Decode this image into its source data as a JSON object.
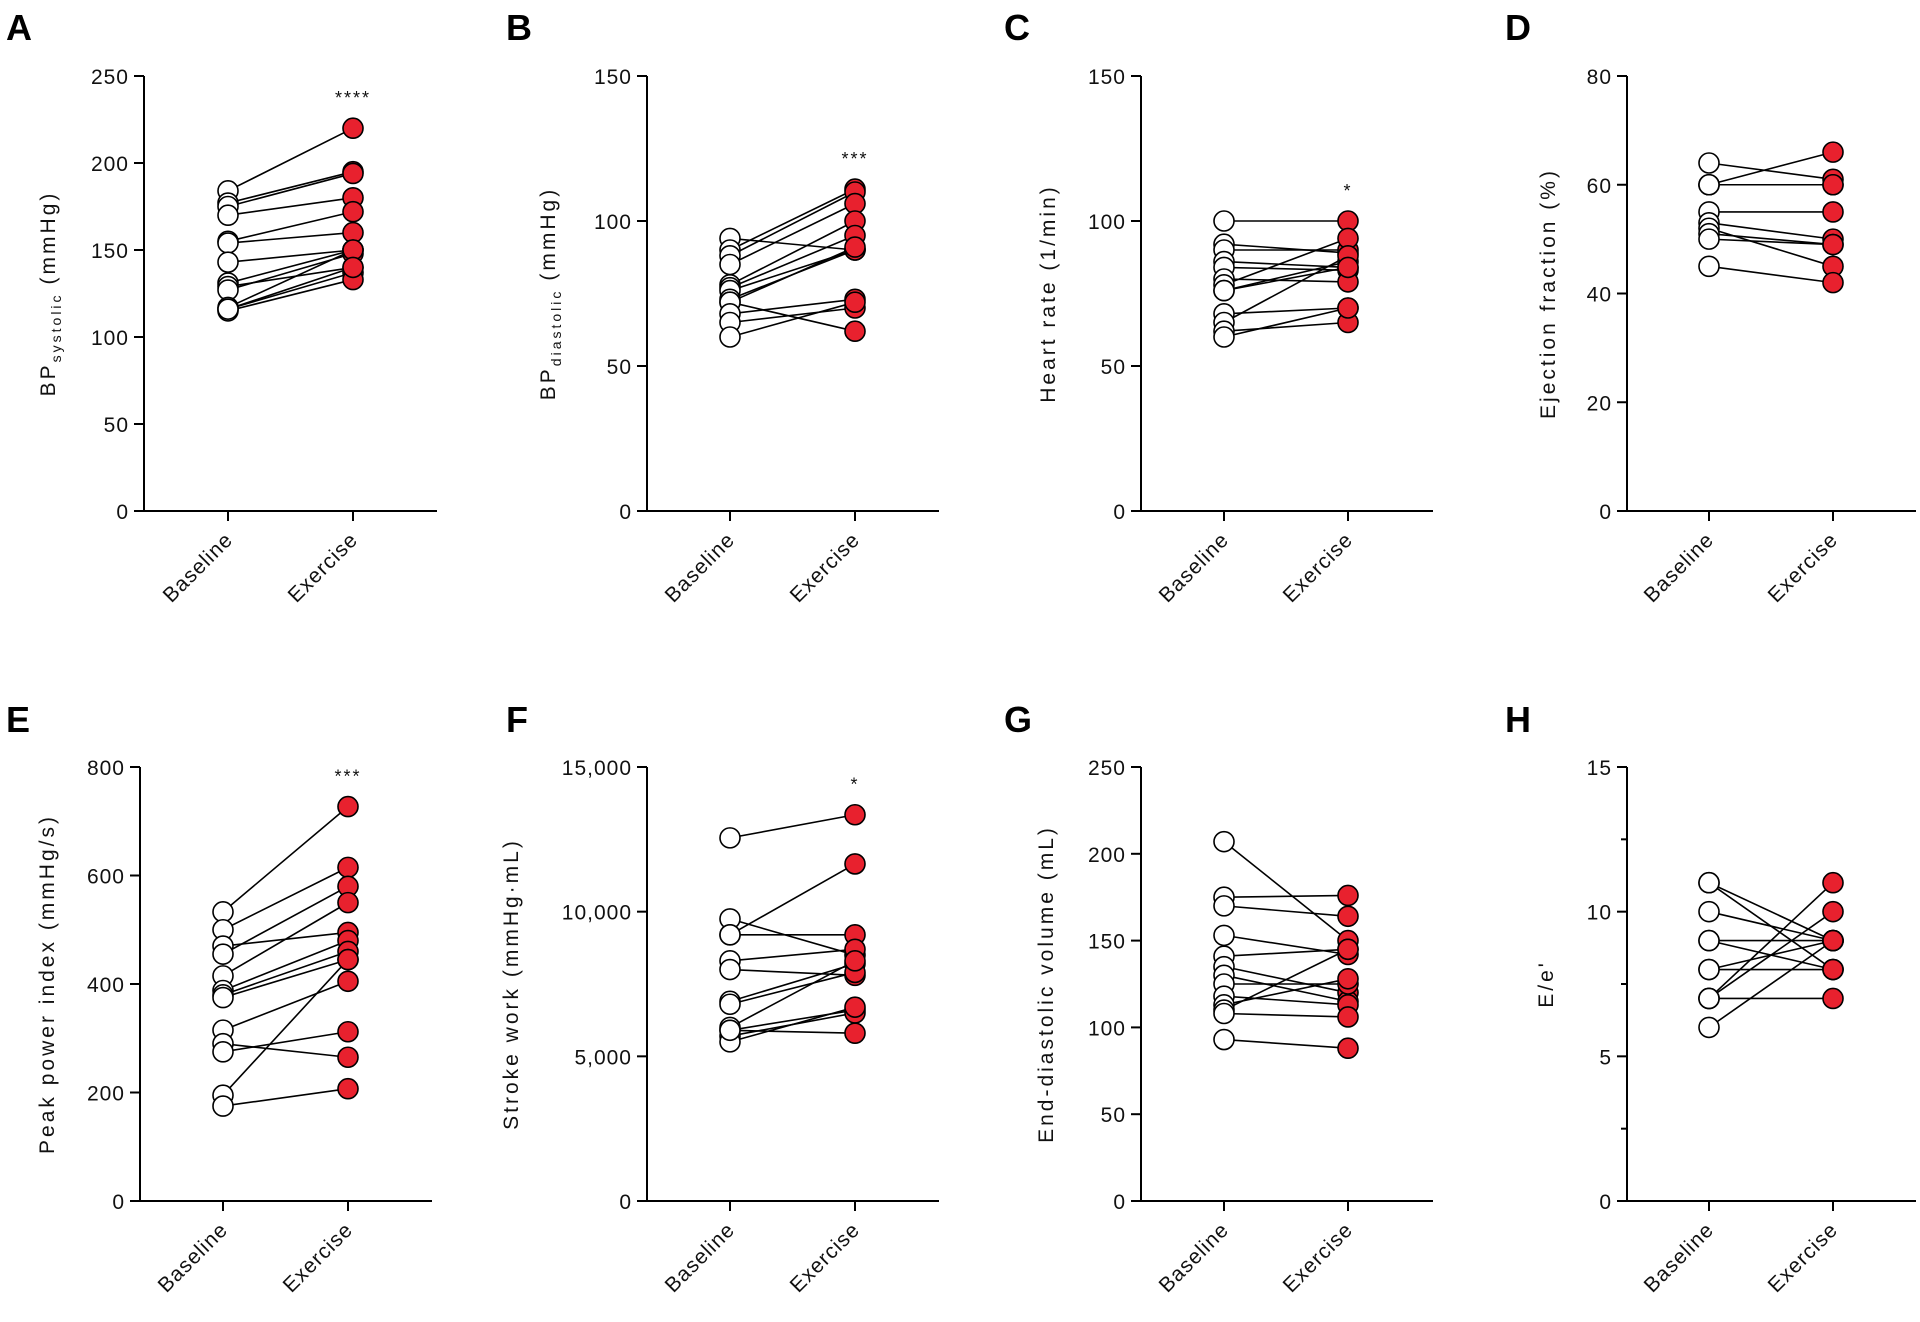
{
  "chart_data": [
    {
      "type": "line",
      "panel": "A",
      "ylabel": "BP",
      "ylabel_sub": "systolic",
      "ylabel_unit": "(mmHg)",
      "ylim": [
        0,
        250
      ],
      "yticks": [
        0,
        50,
        100,
        150,
        200,
        250
      ],
      "ytick_labels": [
        "0",
        "50",
        "100",
        "150",
        "200",
        "250"
      ],
      "minor_ticks": [],
      "categories": [
        "Baseline",
        "Exercise"
      ],
      "significance": "****",
      "pairs": [
        [
          184,
          220
        ],
        [
          177,
          195
        ],
        [
          175,
          194
        ],
        [
          170,
          180
        ],
        [
          155,
          172
        ],
        [
          154,
          160
        ],
        [
          143,
          150
        ],
        [
          131,
          150
        ],
        [
          129,
          140
        ],
        [
          127,
          148
        ],
        [
          117,
          150
        ],
        [
          116,
          137
        ],
        [
          115,
          133
        ],
        [
          116,
          140
        ]
      ]
    },
    {
      "type": "line",
      "panel": "B",
      "ylabel": "BP",
      "ylabel_sub": "diastolic",
      "ylabel_unit": "(mmHg)",
      "ylim": [
        0,
        150
      ],
      "yticks": [
        0,
        50,
        100,
        150
      ],
      "ytick_labels": [
        "0",
        "50",
        "100",
        "150"
      ],
      "minor_ticks": [],
      "categories": [
        "Baseline",
        "Exercise"
      ],
      "significance": "***",
      "pairs": [
        [
          94,
          90
        ],
        [
          90,
          111
        ],
        [
          88,
          110
        ],
        [
          85,
          106
        ],
        [
          78,
          100
        ],
        [
          77,
          95
        ],
        [
          76,
          90
        ],
        [
          73,
          90
        ],
        [
          72,
          91
        ],
        [
          72,
          62
        ],
        [
          68,
          73
        ],
        [
          65,
          70
        ],
        [
          60,
          72
        ]
      ]
    },
    {
      "type": "line",
      "panel": "C",
      "ylabel": "Heart rate (1/min)",
      "ylabel_sub": "",
      "ylabel_unit": "",
      "ylim": [
        0,
        150
      ],
      "yticks": [
        0,
        50,
        100,
        150
      ],
      "ytick_labels": [
        "0",
        "50",
        "100",
        "150"
      ],
      "minor_ticks": [],
      "categories": [
        "Baseline",
        "Exercise"
      ],
      "significance": "*",
      "pairs": [
        [
          100,
          100
        ],
        [
          92,
          89
        ],
        [
          90,
          90
        ],
        [
          86,
          84
        ],
        [
          84,
          83
        ],
        [
          80,
          79
        ],
        [
          78,
          94
        ],
        [
          76,
          86
        ],
        [
          68,
          70
        ],
        [
          65,
          88
        ],
        [
          62,
          65
        ],
        [
          60,
          70
        ],
        [
          76,
          84
        ]
      ]
    },
    {
      "type": "line",
      "panel": "D",
      "ylabel": "Ejection fraction (%)",
      "ylabel_sub": "",
      "ylabel_unit": "",
      "ylim": [
        0,
        80
      ],
      "yticks": [
        0,
        20,
        40,
        60,
        80
      ],
      "ytick_labels": [
        "0",
        "20",
        "40",
        "60",
        "80"
      ],
      "minor_ticks": [],
      "categories": [
        "Baseline",
        "Exercise"
      ],
      "significance": "",
      "pairs": [
        [
          64,
          61
        ],
        [
          60,
          66
        ],
        [
          60,
          60
        ],
        [
          55,
          55
        ],
        [
          53,
          50
        ],
        [
          52,
          45
        ],
        [
          51,
          49
        ],
        [
          50,
          49
        ],
        [
          45,
          42
        ],
        [
          60,
          60
        ]
      ]
    },
    {
      "type": "line",
      "panel": "E",
      "ylabel": "Peak power index (mmHg/s)",
      "ylabel_sub": "",
      "ylabel_unit": "",
      "ylim": [
        0,
        800
      ],
      "yticks": [
        0,
        200,
        400,
        600,
        800
      ],
      "ytick_labels": [
        "0",
        "200",
        "400",
        "600",
        "800"
      ],
      "minor_ticks": [],
      "categories": [
        "Baseline",
        "Exercise"
      ],
      "significance": "***",
      "pairs": [
        [
          533,
          727
        ],
        [
          500,
          615
        ],
        [
          470,
          495
        ],
        [
          455,
          580
        ],
        [
          415,
          550
        ],
        [
          388,
          480
        ],
        [
          380,
          460
        ],
        [
          375,
          445
        ],
        [
          315,
          405
        ],
        [
          290,
          265
        ],
        [
          275,
          312
        ],
        [
          195,
          445
        ],
        [
          175,
          207
        ]
      ]
    },
    {
      "type": "line",
      "panel": "F",
      "ylabel": "Stroke work (mmHg·mL)",
      "ylabel_sub": "",
      "ylabel_unit": "",
      "ylim": [
        0,
        15000
      ],
      "yticks": [
        0,
        5000,
        10000,
        15000
      ],
      "ytick_labels": [
        "0",
        "5,000",
        "10,000",
        "15,000"
      ],
      "minor_ticks": [],
      "categories": [
        "Baseline",
        "Exercise"
      ],
      "significance": "*",
      "pairs": [
        [
          12550,
          13350
        ],
        [
          9750,
          8500
        ],
        [
          9200,
          11650
        ],
        [
          9200,
          9200
        ],
        [
          8300,
          8700
        ],
        [
          8000,
          7800
        ],
        [
          6900,
          8200
        ],
        [
          6800,
          7900
        ],
        [
          6000,
          8300
        ],
        [
          5900,
          6600
        ],
        [
          5700,
          6500
        ],
        [
          5500,
          6700
        ],
        [
          5900,
          5800
        ]
      ]
    },
    {
      "type": "line",
      "panel": "G",
      "ylabel": "End-diastolic volume (mL)",
      "ylabel_sub": "",
      "ylabel_unit": "",
      "ylim": [
        0,
        250
      ],
      "yticks": [
        0,
        50,
        100,
        150,
        200,
        250
      ],
      "ytick_labels": [
        "0",
        "50",
        "100",
        "150",
        "200",
        "250"
      ],
      "minor_ticks": [],
      "categories": [
        "Baseline",
        "Exercise"
      ],
      "significance": "",
      "pairs": [
        [
          207,
          150
        ],
        [
          175,
          176
        ],
        [
          170,
          164
        ],
        [
          153,
          142
        ],
        [
          141,
          145
        ],
        [
          135,
          120
        ],
        [
          130,
          115
        ],
        [
          125,
          125
        ],
        [
          118,
          113
        ],
        [
          113,
          128
        ],
        [
          110,
          145
        ],
        [
          108,
          106
        ],
        [
          93,
          88
        ]
      ]
    },
    {
      "type": "line",
      "panel": "H",
      "ylabel": "E/e'",
      "ylabel_sub": "",
      "ylabel_unit": "",
      "ylim": [
        0,
        15
      ],
      "yticks": [
        0,
        5,
        10,
        15
      ],
      "ytick_labels": [
        "0",
        "5",
        "10",
        "15"
      ],
      "minor_ticks": [
        2.5,
        7.5,
        12.5
      ],
      "categories": [
        "Baseline",
        "Exercise"
      ],
      "significance": "",
      "pairs": [
        [
          11,
          9
        ],
        [
          11,
          8
        ],
        [
          10,
          9
        ],
        [
          9,
          9
        ],
        [
          9,
          8
        ],
        [
          8,
          9
        ],
        [
          8,
          8
        ],
        [
          7,
          11
        ],
        [
          7,
          10
        ],
        [
          7,
          7
        ],
        [
          6,
          9
        ]
      ]
    }
  ],
  "colors": {
    "baseline_fill": "#ffffff",
    "exercise_fill": "#e8212e",
    "stroke": "#000000"
  }
}
